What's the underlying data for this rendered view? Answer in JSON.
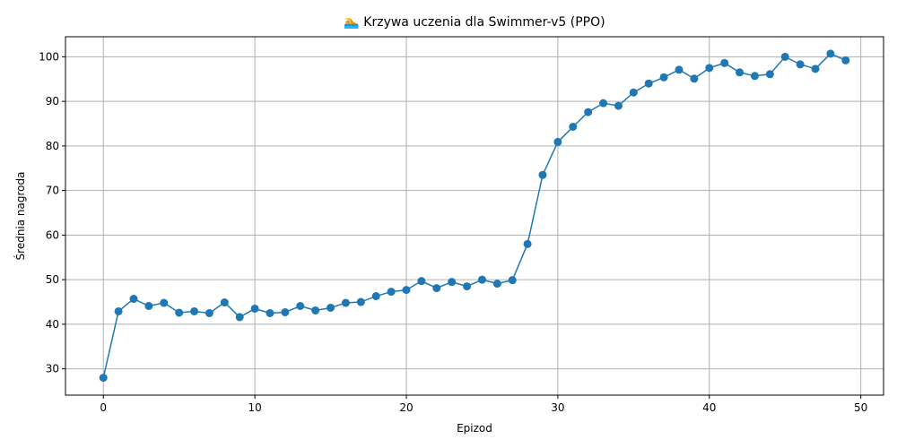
{
  "chart_data": {
    "type": "line",
    "title": "🏊 Krzywa uczenia dla Swimmer-v5 (PPO)",
    "xlabel": "Epizod",
    "ylabel": "Średnia nagroda",
    "xlim": [
      -2.5,
      51.5
    ],
    "ylim": [
      24.1,
      104.5
    ],
    "xticks": [
      0,
      10,
      20,
      30,
      40,
      50
    ],
    "yticks": [
      30,
      40,
      50,
      60,
      70,
      80,
      90,
      100
    ],
    "grid": true,
    "color": "#1f77b4",
    "series": [
      {
        "x": [
          0,
          1,
          2,
          3,
          4,
          5,
          6,
          7,
          8,
          9,
          10,
          11,
          12,
          13,
          14,
          15,
          16,
          17,
          18,
          19,
          20,
          21,
          22,
          23,
          24,
          25,
          26,
          27,
          28,
          29,
          30,
          31,
          32,
          33,
          34,
          35,
          36,
          37,
          38,
          39,
          40,
          41,
          42,
          43,
          44,
          45,
          46,
          47,
          48,
          49
        ],
        "y": [
          28.0,
          42.9,
          45.7,
          44.1,
          44.8,
          42.6,
          42.9,
          42.5,
          44.9,
          41.6,
          43.5,
          42.5,
          42.7,
          44.1,
          43.1,
          43.7,
          44.8,
          45.0,
          46.3,
          47.3,
          47.7,
          49.7,
          48.1,
          49.5,
          48.5,
          50.0,
          49.1,
          49.9,
          58.0,
          73.5,
          80.9,
          84.3,
          87.6,
          89.6,
          89.0,
          92.0,
          94.0,
          95.4,
          97.1,
          95.1,
          97.5,
          98.6,
          96.5,
          95.7,
          96.1,
          100.0,
          98.3,
          97.3,
          100.7,
          99.2
        ]
      }
    ]
  }
}
